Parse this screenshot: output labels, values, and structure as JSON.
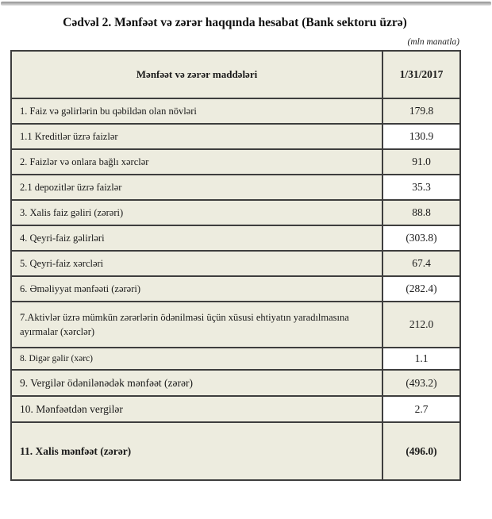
{
  "page": {
    "title": "Cədvəl 2. Mənfəət və zərər haqqında hesabat (Bank sektoru üzrə)",
    "unit_note": "(mln manatla)"
  },
  "colors": {
    "cell_beige": "#edecdf",
    "cell_white": "#ffffff",
    "border": "#3e3e3e"
  },
  "table": {
    "header": {
      "label": "Mənfəət və zərər maddələri",
      "value": "1/31/2017"
    },
    "rows": [
      {
        "label": "1. Faiz və gəlirlərin bu qəbildən olan növləri",
        "value": "179.8",
        "kind": "normal"
      },
      {
        "label": "1.1 Kreditlər üzrə faizlər",
        "value": "130.9",
        "kind": "normal"
      },
      {
        "label": "2. Faizlər və onlara bağlı xərclər",
        "value": "91.0",
        "kind": "normal"
      },
      {
        "label": "2.1 depozitlər üzrə faizlər",
        "value": "35.3",
        "kind": "normal"
      },
      {
        "label": "3. Xalis faiz gəliri (zərəri)",
        "value": "88.8",
        "kind": "normal"
      },
      {
        "label": "4. Qeyri-faiz gəlirləri",
        "value": "(303.8)",
        "kind": "normal"
      },
      {
        "label": "5. Qeyri-faiz xərcləri",
        "value": "67.4",
        "kind": "normal"
      },
      {
        "label": "6. Əməliyyat mənfəəti (zərəri)",
        "value": "(282.4)",
        "kind": "normal"
      },
      {
        "label": "7.Aktivlər üzrə mümkün zərərlərin ödənilməsi üçün xüsusi ehtiyatın yaradılmasına ayırmalar (xərclər)",
        "value": "212.0",
        "kind": "wrap"
      },
      {
        "label": "8. Digər gəlir (xərc)",
        "value": "1.1",
        "kind": "small"
      },
      {
        "label": "9. Vergilər ödənilənədək mənfəət (zərər)",
        "value": "(493.2)",
        "kind": "large"
      },
      {
        "label": "10. Mənfəətdən vergilər",
        "value": "2.7",
        "kind": "large"
      },
      {
        "label": "11. Xalis mənfəət (zərər)",
        "value": "(496.0)",
        "kind": "total"
      }
    ]
  }
}
